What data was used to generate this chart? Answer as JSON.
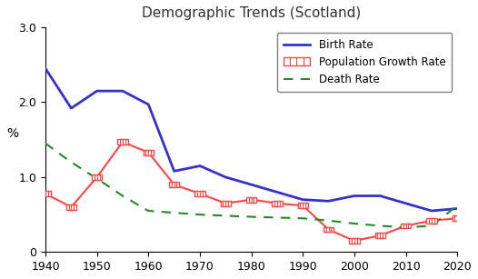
{
  "title": "Demographic Trends (Scotland)",
  "ylabel": "%",
  "xlim": [
    1940,
    2020
  ],
  "ylim": [
    0,
    3.0
  ],
  "yticks": [
    0,
    1.0,
    2.0,
    3.0
  ],
  "xticks": [
    1940,
    1950,
    1960,
    1970,
    1980,
    1990,
    2000,
    2010,
    2020
  ],
  "birth_rate_x": [
    1940,
    1945,
    1950,
    1955,
    1960,
    1965,
    1970,
    1975,
    1980,
    1985,
    1990,
    1995,
    2000,
    2005,
    2010,
    2015,
    2020
  ],
  "birth_rate_y": [
    2.45,
    1.92,
    2.15,
    2.15,
    1.97,
    1.08,
    1.15,
    1.0,
    0.9,
    0.8,
    0.7,
    0.68,
    0.75,
    0.75,
    0.65,
    0.55,
    0.58
  ],
  "pop_growth_x": [
    1940,
    1945,
    1950,
    1955,
    1960,
    1965,
    1970,
    1975,
    1980,
    1985,
    1990,
    1995,
    2000,
    2005,
    2010,
    2015,
    2020
  ],
  "pop_growth_y": [
    0.78,
    0.6,
    1.0,
    1.47,
    1.33,
    0.9,
    0.78,
    0.65,
    0.7,
    0.65,
    0.62,
    0.3,
    0.15,
    0.22,
    0.35,
    0.42,
    0.45
  ],
  "death_rate_x": [
    1940,
    1945,
    1950,
    1955,
    1960,
    1970,
    1980,
    1990,
    1995,
    2000,
    2005,
    2010,
    2015,
    2020
  ],
  "death_rate_y": [
    1.45,
    1.2,
    0.98,
    0.75,
    0.55,
    0.5,
    0.47,
    0.45,
    0.42,
    0.38,
    0.35,
    0.33,
    0.35,
    0.62
  ],
  "birth_color": "#3333cc",
  "pop_growth_color": "#ff4444",
  "death_color": "#228B22",
  "legend_loc": "upper right",
  "background_color": "#ffffff"
}
